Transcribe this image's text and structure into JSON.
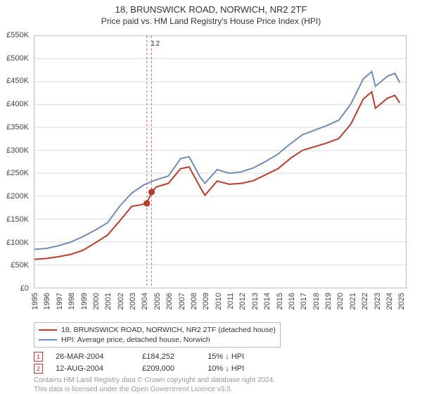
{
  "title": "18, BRUNSWICK ROAD, NORWICH, NR2 2TF",
  "subtitle": "Price paid vs. HM Land Registry's House Price Index (HPI)",
  "chart": {
    "type": "line",
    "background_color": "#ffffff",
    "grid_color": "#dcdcdc",
    "border_color": "#bbbbbb",
    "xlim": [
      1995,
      2025.5
    ],
    "ylim": [
      0,
      550000
    ],
    "ytick_step": 50000,
    "ytick_format": "£{k}K",
    "xticks": [
      1995,
      1996,
      1997,
      1998,
      1999,
      2000,
      2001,
      2002,
      2003,
      2004,
      2005,
      2006,
      2007,
      2008,
      2009,
      2010,
      2011,
      2012,
      2013,
      2014,
      2015,
      2016,
      2017,
      2018,
      2019,
      2020,
      2021,
      2022,
      2023,
      2024,
      2025
    ],
    "series1": {
      "name": "18, BRUNSWICK ROAD, NORWICH, NR2 2TF (detached house)",
      "color": "#c0392b",
      "width": 2,
      "points": [
        [
          1995,
          62000
        ],
        [
          1996,
          64000
        ],
        [
          1997,
          68000
        ],
        [
          1998,
          73000
        ],
        [
          1999,
          82000
        ],
        [
          2000,
          98000
        ],
        [
          2001,
          115000
        ],
        [
          2002,
          146000
        ],
        [
          2003,
          178000
        ],
        [
          2003.7,
          181000
        ],
        [
          2004.23,
          184252
        ],
        [
          2004.62,
          209000
        ],
        [
          2005,
          220000
        ],
        [
          2006,
          228000
        ],
        [
          2007,
          260000
        ],
        [
          2007.7,
          264000
        ],
        [
          2008.6,
          220000
        ],
        [
          2009,
          202000
        ],
        [
          2010,
          233000
        ],
        [
          2011,
          226000
        ],
        [
          2012,
          228000
        ],
        [
          2013,
          234000
        ],
        [
          2014,
          247000
        ],
        [
          2015,
          260000
        ],
        [
          2016,
          282000
        ],
        [
          2017,
          300000
        ],
        [
          2018,
          308000
        ],
        [
          2019,
          316000
        ],
        [
          2020,
          326000
        ],
        [
          2021,
          358000
        ],
        [
          2022,
          412000
        ],
        [
          2022.7,
          428000
        ],
        [
          2023,
          392000
        ],
        [
          2024,
          414000
        ],
        [
          2024.6,
          420000
        ],
        [
          2025,
          404000
        ]
      ]
    },
    "series2": {
      "name": "HPI: Average price, detached house, Norwich",
      "color": "#6f8cb8",
      "width": 2,
      "points": [
        [
          1995,
          84000
        ],
        [
          1996,
          86000
        ],
        [
          1997,
          92000
        ],
        [
          1998,
          100000
        ],
        [
          1999,
          112000
        ],
        [
          2000,
          126000
        ],
        [
          2001,
          142000
        ],
        [
          2002,
          178000
        ],
        [
          2003,
          207000
        ],
        [
          2004,
          225000
        ],
        [
          2005,
          236000
        ],
        [
          2006,
          244000
        ],
        [
          2007,
          282000
        ],
        [
          2007.7,
          286000
        ],
        [
          2008.6,
          242000
        ],
        [
          2009,
          228000
        ],
        [
          2010,
          258000
        ],
        [
          2011,
          250000
        ],
        [
          2012,
          253000
        ],
        [
          2013,
          262000
        ],
        [
          2014,
          276000
        ],
        [
          2015,
          292000
        ],
        [
          2016,
          314000
        ],
        [
          2017,
          334000
        ],
        [
          2018,
          344000
        ],
        [
          2019,
          354000
        ],
        [
          2020,
          366000
        ],
        [
          2021,
          402000
        ],
        [
          2022,
          456000
        ],
        [
          2022.7,
          472000
        ],
        [
          2023,
          440000
        ],
        [
          2024,
          462000
        ],
        [
          2024.6,
          468000
        ],
        [
          2025,
          448000
        ]
      ]
    },
    "sale_markers": [
      {
        "n": 1,
        "year": 2004.23,
        "price": 184252
      },
      {
        "n": 2,
        "year": 2004.62,
        "price": 209000
      }
    ],
    "vertical_bands": [
      2004.23,
      2004.62
    ]
  },
  "legend": {
    "items": [
      {
        "label": "18, BRUNSWICK ROAD, NORWICH, NR2 2TF (detached house)",
        "color": "#c0392b"
      },
      {
        "label": "HPI: Average price, detached house, Norwich",
        "color": "#6f8cb8"
      }
    ]
  },
  "sales": [
    {
      "n": "1",
      "date": "26-MAR-2004",
      "price": "£184,252",
      "hpi": "15% ↓ HPI"
    },
    {
      "n": "2",
      "date": "12-AUG-2004",
      "price": "£209,000",
      "hpi": "10% ↓ HPI"
    }
  ],
  "footer": {
    "line1": "Contains HM Land Registry data © Crown copyright and database right 2024.",
    "line2": "This data is licensed under the Open Government Licence v3.0."
  },
  "typography": {
    "title_fontsize": 13,
    "subtitle_fontsize": 12,
    "axis_fontsize": 11,
    "legend_fontsize": 10.5,
    "footer_fontsize": 10
  }
}
